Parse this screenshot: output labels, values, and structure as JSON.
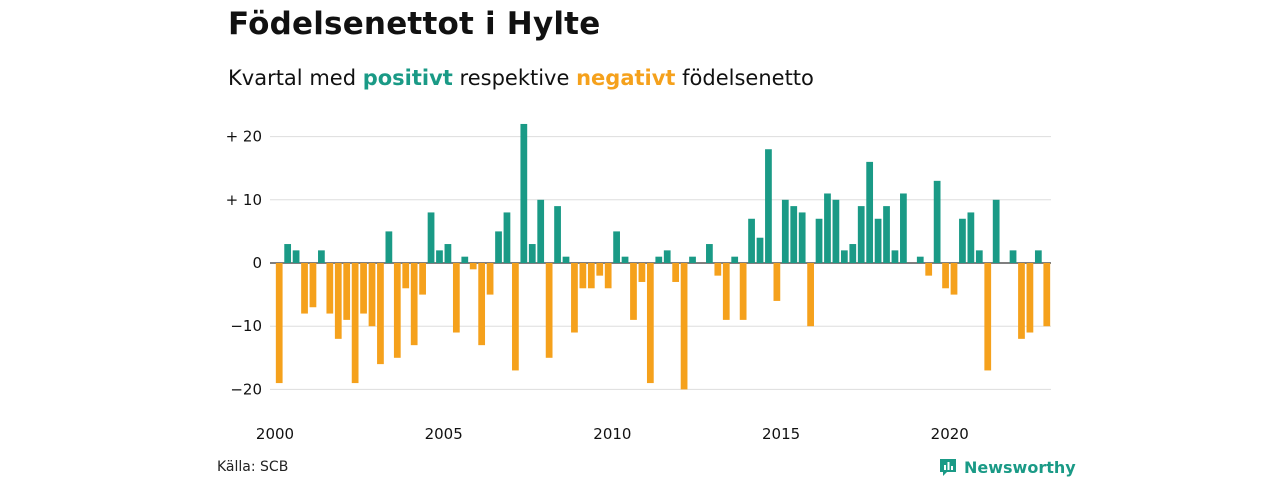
{
  "title": "Födelsenettot i Hylte",
  "subtitle": {
    "prefix": "Kvartal med",
    "positive_word": "positivt",
    "middle": "respektive",
    "negative_word": "negativt",
    "suffix": "födelsenetto"
  },
  "colors": {
    "positive": "#1a9a86",
    "negative": "#f5a11c",
    "grid": "#dddddd",
    "zero_line": "#333333"
  },
  "chart_data": {
    "type": "bar",
    "first_quarter": "2000 Q1",
    "x_tick_labels": [
      "2000",
      "2005",
      "2010",
      "2015",
      "2020"
    ],
    "y_tick_labels": [
      "+ 20",
      "+ 10",
      "0",
      "−10",
      "−20"
    ],
    "y_ticks": [
      20,
      10,
      0,
      -10,
      -20
    ],
    "ylim": [
      -20,
      22
    ],
    "values": [
      -19,
      3,
      2,
      -8,
      -7,
      2,
      -8,
      -12,
      -9,
      -19,
      -8,
      -10,
      -16,
      5,
      -15,
      -4,
      -13,
      -5,
      8,
      2,
      3,
      -11,
      1,
      -1,
      -13,
      -5,
      5,
      8,
      -17,
      22,
      3,
      10,
      -15,
      9,
      1,
      -11,
      -4,
      -4,
      -2,
      -4,
      5,
      1,
      -9,
      -3,
      -19,
      1,
      2,
      -3,
      -20,
      1,
      0,
      3,
      -2,
      -9,
      1,
      -9,
      7,
      4,
      18,
      -6,
      10,
      9,
      8,
      -10,
      7,
      11,
      10,
      2,
      3,
      9,
      16,
      7,
      9,
      2,
      11,
      0,
      1,
      -2,
      13,
      -4,
      -5,
      7,
      8,
      2,
      -17,
      10,
      0,
      2,
      -12,
      -11,
      2,
      -10
    ]
  },
  "footer": {
    "source": "Källa: SCB",
    "brand": "Newsworthy",
    "brand_icon": "newsworthy-logo-icon"
  }
}
